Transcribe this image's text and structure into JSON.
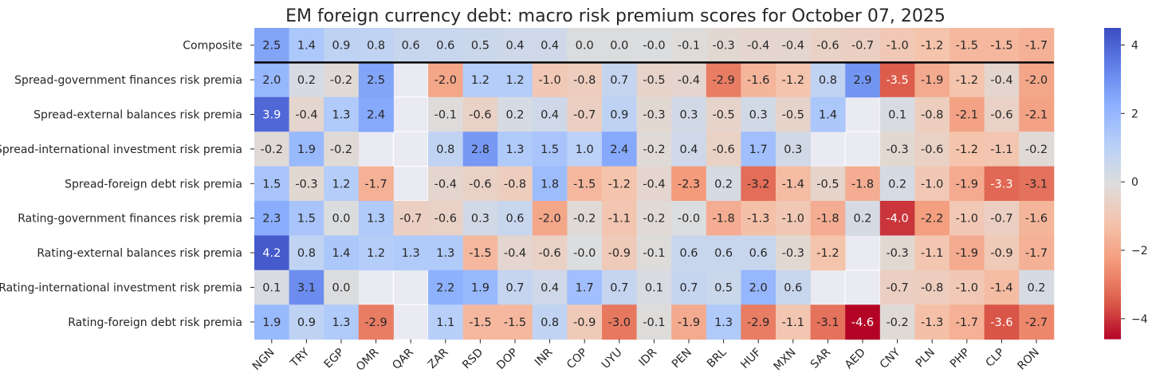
{
  "chart_data": {
    "type": "heatmap",
    "title": "EM foreign currency debt: macro risk premium scores for October 07, 2025",
    "xlabel": "",
    "ylabel": "",
    "colormap": "coolwarm_r",
    "vmin": -4.6,
    "vmax": 4.5,
    "colorbar_ticks": [
      "4",
      "2",
      "0",
      "−2",
      "−4"
    ],
    "colorbar_tick_values": [
      4,
      2,
      0,
      -2,
      -4
    ],
    "columns": [
      "NGN",
      "TRY",
      "EGP",
      "OMR",
      "QAR",
      "ZAR",
      "RSD",
      "DOP",
      "INR",
      "COP",
      "UYU",
      "IDR",
      "PEN",
      "BRL",
      "HUF",
      "MXN",
      "SAR",
      "AED",
      "CNY",
      "PLN",
      "PHP",
      "CLP",
      "RON"
    ],
    "rows": [
      "Composite",
      "Spread-government finances risk premia",
      "Spread-external balances risk premia",
      "Spread-international investment risk premia",
      "Spread-foreign debt risk premia",
      "Rating-government finances risk premia",
      "Rating-external balances risk premia",
      "Rating-international investment risk premia",
      "Rating-foreign debt risk premia"
    ],
    "values": [
      [
        2.5,
        1.4,
        0.9,
        0.8,
        0.6,
        0.6,
        0.5,
        0.4,
        0.4,
        0.0,
        0.0,
        -0.01,
        -0.1,
        -0.3,
        -0.4,
        -0.4,
        -0.6,
        -0.7,
        -1.0,
        -1.2,
        -1.5,
        -1.5,
        -1.7
      ],
      [
        2.0,
        0.2,
        -0.2,
        2.5,
        null,
        -2.0,
        1.2,
        1.2,
        -1.0,
        -0.8,
        0.7,
        -0.5,
        -0.4,
        -2.9,
        -1.6,
        -1.2,
        0.8,
        2.9,
        -3.5,
        -1.9,
        -1.2,
        -0.4,
        -2.0
      ],
      [
        3.9,
        -0.4,
        1.3,
        2.4,
        null,
        -0.1,
        -0.6,
        0.2,
        0.4,
        -0.7,
        0.9,
        -0.3,
        0.3,
        -0.5,
        0.3,
        -0.5,
        1.4,
        null,
        0.1,
        -0.8,
        -2.1,
        -0.6,
        -2.1
      ],
      [
        -0.2,
        1.9,
        -0.2,
        null,
        null,
        0.8,
        2.8,
        1.3,
        1.5,
        1.0,
        2.4,
        -0.2,
        0.4,
        -0.6,
        1.7,
        0.3,
        null,
        null,
        -0.3,
        -0.6,
        -1.2,
        -1.1,
        -0.2
      ],
      [
        1.5,
        -0.3,
        1.2,
        -1.7,
        null,
        -0.4,
        -0.6,
        -0.8,
        1.8,
        -1.5,
        -1.2,
        -0.4,
        -2.3,
        0.2,
        -3.2,
        -1.4,
        -0.5,
        -1.8,
        0.2,
        -1.0,
        -1.9,
        -3.3,
        -3.1
      ],
      [
        2.3,
        1.5,
        0.0,
        1.3,
        -0.7,
        -0.6,
        0.3,
        0.6,
        -2.0,
        -0.2,
        -1.1,
        -0.2,
        -0.01,
        -1.8,
        -1.3,
        -1.0,
        -1.8,
        0.2,
        -4.0,
        -2.2,
        -1.0,
        -0.7,
        -1.6
      ],
      [
        4.2,
        0.8,
        1.4,
        1.2,
        1.3,
        1.3,
        -1.5,
        -0.4,
        -0.6,
        -0.01,
        -0.9,
        -0.1,
        0.6,
        0.6,
        0.6,
        -0.3,
        -1.2,
        null,
        -0.3,
        -1.1,
        -1.9,
        -0.9,
        -1.7
      ],
      [
        0.1,
        3.1,
        0.0,
        null,
        null,
        2.2,
        1.9,
        0.7,
        0.4,
        1.7,
        0.7,
        0.1,
        0.7,
        0.5,
        2.0,
        0.6,
        null,
        null,
        -0.7,
        -0.8,
        -1.0,
        -1.4,
        0.2
      ],
      [
        1.9,
        0.9,
        1.3,
        -2.9,
        null,
        1.1,
        -1.5,
        -1.5,
        0.8,
        -0.9,
        -3.0,
        -0.1,
        -1.9,
        1.3,
        -2.9,
        -1.1,
        -3.1,
        -4.6,
        -0.2,
        -1.3,
        -1.7,
        -3.6,
        -2.7
      ]
    ],
    "labels": [
      [
        "2.5",
        "1.4",
        "0.9",
        "0.8",
        "0.6",
        "0.6",
        "0.5",
        "0.4",
        "0.4",
        "0.0",
        "0.0",
        "-0.0",
        "-0.1",
        "-0.3",
        "-0.4",
        "-0.4",
        "-0.6",
        "-0.7",
        "-1.0",
        "-1.2",
        "-1.5",
        "-1.5",
        "-1.7"
      ],
      [
        "2.0",
        "0.2",
        "-0.2",
        "2.5",
        "",
        "-2.0",
        "1.2",
        "1.2",
        "-1.0",
        "-0.8",
        "0.7",
        "-0.5",
        "-0.4",
        "-2.9",
        "-1.6",
        "-1.2",
        "0.8",
        "2.9",
        "-3.5",
        "-1.9",
        "-1.2",
        "-0.4",
        "-2.0"
      ],
      [
        "3.9",
        "-0.4",
        "1.3",
        "2.4",
        "",
        "-0.1",
        "-0.6",
        "0.2",
        "0.4",
        "-0.7",
        "0.9",
        "-0.3",
        "0.3",
        "-0.5",
        "0.3",
        "-0.5",
        "1.4",
        "",
        "0.1",
        "-0.8",
        "-2.1",
        "-0.6",
        "-2.1"
      ],
      [
        "-0.2",
        "1.9",
        "-0.2",
        "",
        "",
        "0.8",
        "2.8",
        "1.3",
        "1.5",
        "1.0",
        "2.4",
        "-0.2",
        "0.4",
        "-0.6",
        "1.7",
        "0.3",
        "",
        "",
        "-0.3",
        "-0.6",
        "-1.2",
        "-1.1",
        "-0.2"
      ],
      [
        "1.5",
        "-0.3",
        "1.2",
        "-1.7",
        "",
        "-0.4",
        "-0.6",
        "-0.8",
        "1.8",
        "-1.5",
        "-1.2",
        "-0.4",
        "-2.3",
        "0.2",
        "-3.2",
        "-1.4",
        "-0.5",
        "-1.8",
        "0.2",
        "-1.0",
        "-1.9",
        "-3.3",
        "-3.1"
      ],
      [
        "2.3",
        "1.5",
        "0.0",
        "1.3",
        "-0.7",
        "-0.6",
        "0.3",
        "0.6",
        "-2.0",
        "-0.2",
        "-1.1",
        "-0.2",
        "-0.0",
        "-1.8",
        "-1.3",
        "-1.0",
        "-1.8",
        "0.2",
        "-4.0",
        "-2.2",
        "-1.0",
        "-0.7",
        "-1.6"
      ],
      [
        "4.2",
        "0.8",
        "1.4",
        "1.2",
        "1.3",
        "1.3",
        "-1.5",
        "-0.4",
        "-0.6",
        "-0.0",
        "-0.9",
        "-0.1",
        "0.6",
        "0.6",
        "0.6",
        "-0.3",
        "-1.2",
        "",
        "-0.3",
        "-1.1",
        "-1.9",
        "-0.9",
        "-1.7"
      ],
      [
        "0.1",
        "3.1",
        "0.0",
        "",
        "",
        "2.2",
        "1.9",
        "0.7",
        "0.4",
        "1.7",
        "0.7",
        "0.1",
        "0.7",
        "0.5",
        "2.0",
        "0.6",
        "",
        "",
        "-0.7",
        "-0.8",
        "-1.0",
        "-1.4",
        "0.2"
      ],
      [
        "1.9",
        "0.9",
        "1.3",
        "-2.9",
        "",
        "1.1",
        "-1.5",
        "-1.5",
        "0.8",
        "-0.9",
        "-3.0",
        "-0.1",
        "-1.9",
        "1.3",
        "-2.9",
        "-1.1",
        "-3.1",
        "-4.6",
        "-0.2",
        "-1.3",
        "-1.7",
        "-3.6",
        "-2.7"
      ]
    ],
    "separator_after_row": 0,
    "colors": {
      "background": "#ffffff",
      "missing": "#eaeaf2",
      "grid": "#ffffff",
      "separator": "#000000",
      "text_dark": "#262626",
      "text_light": "#ffffff"
    }
  }
}
